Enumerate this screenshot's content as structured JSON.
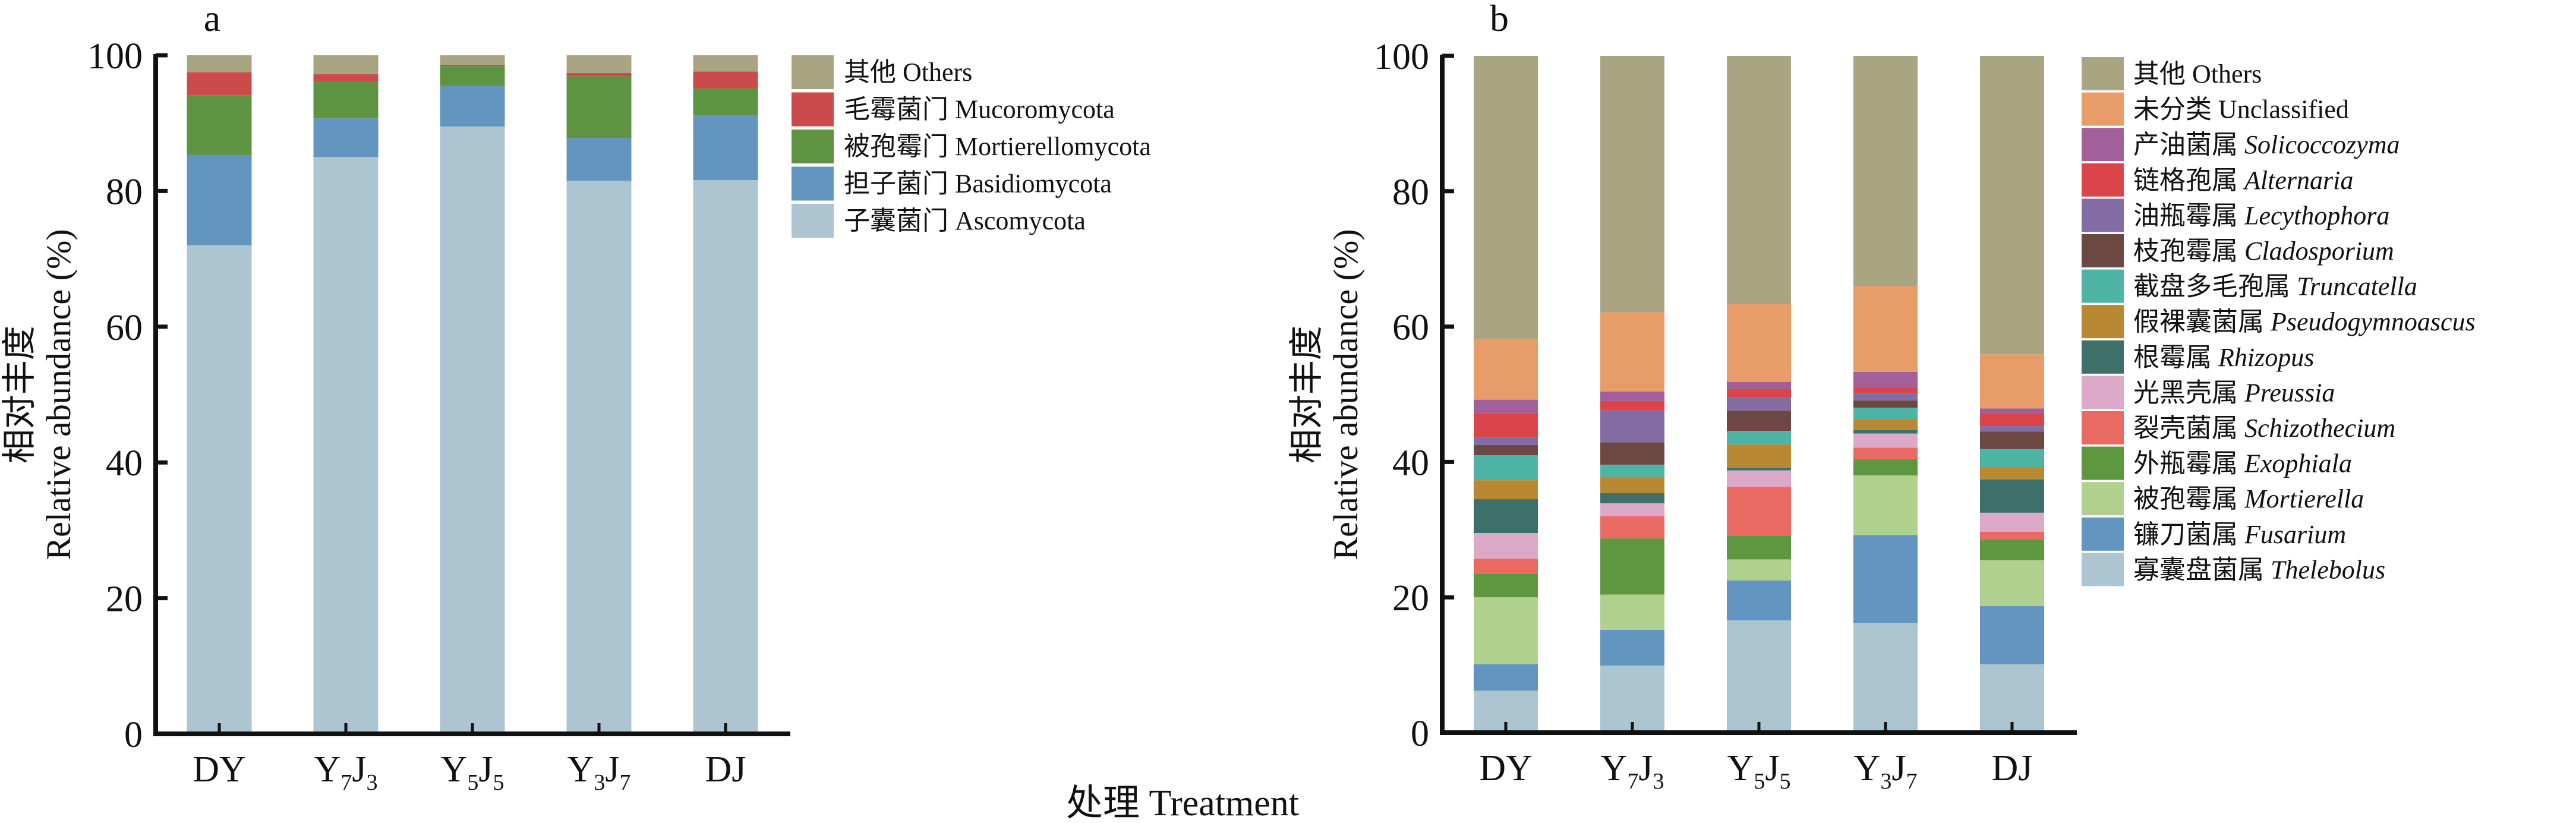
{
  "figure": {
    "x_title": "处理 Treatment"
  },
  "chart_data": [
    {
      "type": "bar",
      "stacked": true,
      "panel_label": "a",
      "title": "",
      "xlabel": "处理 Treatment",
      "ylabel_cn": "相对丰度",
      "ylabel_en": "Relative abundance (%)",
      "ylim": [
        0,
        100
      ],
      "yticks": [
        0,
        20,
        40,
        60,
        80,
        100
      ],
      "grid": false,
      "legend_position": "right",
      "categories": [
        {
          "main": "DY",
          "parts": [
            {
              "t": "DY",
              "sub": false
            }
          ]
        },
        {
          "main": "Y7J3",
          "parts": [
            {
              "t": "Y",
              "sub": false
            },
            {
              "t": "7",
              "sub": true
            },
            {
              "t": "J",
              "sub": false
            },
            {
              "t": "3",
              "sub": true
            }
          ]
        },
        {
          "main": "Y5J5",
          "parts": [
            {
              "t": "Y",
              "sub": false
            },
            {
              "t": "5",
              "sub": true
            },
            {
              "t": "J",
              "sub": false
            },
            {
              "t": "5",
              "sub": true
            }
          ]
        },
        {
          "main": "Y3J7",
          "parts": [
            {
              "t": "Y",
              "sub": false
            },
            {
              "t": "3",
              "sub": true
            },
            {
              "t": "J",
              "sub": false
            },
            {
              "t": "7",
              "sub": true
            }
          ]
        },
        {
          "main": "DJ",
          "parts": [
            {
              "t": "DJ",
              "sub": false
            }
          ]
        }
      ],
      "series": [
        {
          "name_cn": "子囊菌门",
          "name": "Ascomycota",
          "italic": false,
          "color": "#adc5d1",
          "values": [
            72.0,
            85.0,
            89.5,
            81.5,
            81.6
          ]
        },
        {
          "name_cn": "担子菌门",
          "name": "Basidiomycota",
          "italic": false,
          "color": "#6296c0",
          "values": [
            13.3,
            5.7,
            6.0,
            6.3,
            9.5
          ]
        },
        {
          "name_cn": "被孢霉门",
          "name": "Mortierellomycota",
          "italic": false,
          "color": "#5e9341",
          "values": [
            8.8,
            5.4,
            2.9,
            9.1,
            4.0
          ]
        },
        {
          "name_cn": "毛霉菌门",
          "name": "Mucoromycota",
          "italic": false,
          "color": "#cb4a4c",
          "values": [
            3.4,
            1.1,
            0.2,
            0.5,
            2.5
          ]
        },
        {
          "name_cn": "其他",
          "name": "Others",
          "italic": false,
          "color": "#a9a583",
          "values": [
            2.5,
            2.8,
            1.4,
            2.6,
            2.4
          ]
        }
      ]
    },
    {
      "type": "bar",
      "stacked": true,
      "panel_label": "b",
      "title": "",
      "xlabel": "处理 Treatment",
      "ylabel_cn": "相对丰度",
      "ylabel_en": "Relative abundance (%)",
      "ylim": [
        0,
        100
      ],
      "yticks": [
        0,
        20,
        40,
        60,
        80,
        100
      ],
      "grid": false,
      "legend_position": "right",
      "categories": [
        {
          "main": "DY",
          "parts": [
            {
              "t": "DY",
              "sub": false
            }
          ]
        },
        {
          "main": "Y7J3",
          "parts": [
            {
              "t": "Y",
              "sub": false
            },
            {
              "t": "7",
              "sub": true
            },
            {
              "t": "J",
              "sub": false
            },
            {
              "t": "3",
              "sub": true
            }
          ]
        },
        {
          "main": "Y5J5",
          "parts": [
            {
              "t": "Y",
              "sub": false
            },
            {
              "t": "5",
              "sub": true
            },
            {
              "t": "J",
              "sub": false
            },
            {
              "t": "5",
              "sub": true
            }
          ]
        },
        {
          "main": "Y3J7",
          "parts": [
            {
              "t": "Y",
              "sub": false
            },
            {
              "t": "3",
              "sub": true
            },
            {
              "t": "J",
              "sub": false
            },
            {
              "t": "7",
              "sub": true
            }
          ]
        },
        {
          "main": "DJ",
          "parts": [
            {
              "t": "DJ",
              "sub": false
            }
          ]
        }
      ],
      "series": [
        {
          "name_cn": "寡囊盘菌属",
          "name": "Thelebolus",
          "italic": true,
          "color": "#adc5d1",
          "values": [
            6.2,
            9.9,
            16.6,
            16.2,
            10.1
          ]
        },
        {
          "name_cn": "镰刀菌属",
          "name": "Fusarium",
          "italic": true,
          "color": "#6296c0",
          "values": [
            3.9,
            5.3,
            5.9,
            13.0,
            8.6
          ]
        },
        {
          "name_cn": "被孢霉属",
          "name": "Mortierella",
          "italic": true,
          "color": "#b0d18d",
          "values": [
            9.9,
            5.2,
            3.1,
            8.8,
            6.8
          ]
        },
        {
          "name_cn": "外瓶霉属",
          "name": "Exophiala",
          "italic": true,
          "color": "#5f9640",
          "values": [
            3.5,
            8.3,
            3.5,
            2.4,
            3.1
          ]
        },
        {
          "name_cn": "裂壳菌属",
          "name": "Schizothecium",
          "italic": true,
          "color": "#e96a63",
          "values": [
            2.2,
            3.3,
            7.2,
            1.7,
            1.1
          ]
        },
        {
          "name_cn": "光黑壳属",
          "name": "Preussia",
          "italic": true,
          "color": "#dca9c9",
          "values": [
            3.8,
            1.9,
            2.45,
            2.1,
            2.8
          ]
        },
        {
          "name_cn": "根霉属",
          "name": "Rhizopus",
          "italic": true,
          "color": "#3d7069",
          "values": [
            5.0,
            1.5,
            0.35,
            0.5,
            4.9
          ]
        },
        {
          "name_cn": "假裸囊菌属",
          "name": "Pseudogymnoascus",
          "italic": true,
          "color": "#b98832",
          "values": [
            2.8,
            2.4,
            3.5,
            1.6,
            1.8
          ]
        },
        {
          "name_cn": "截盘多毛孢属",
          "name": "Truncatella",
          "italic": true,
          "color": "#4db4a6",
          "values": [
            3.7,
            1.8,
            2.0,
            1.7,
            2.7
          ]
        },
        {
          "name_cn": "枝孢霉属",
          "name": "Cladosporium",
          "italic": true,
          "color": "#6d4742",
          "values": [
            1.5,
            3.3,
            3.0,
            1.1,
            2.6
          ]
        },
        {
          "name_cn": "油瓶霉属",
          "name": "Lecythophora",
          "italic": true,
          "color": "#836ca3",
          "values": [
            1.2,
            4.7,
            2.0,
            1.1,
            0.8
          ]
        },
        {
          "name_cn": "链格孢属",
          "name": "Alternaria",
          "italic": true,
          "color": "#db4549",
          "values": [
            3.5,
            1.4,
            1.2,
            0.8,
            1.8
          ]
        },
        {
          "name_cn": "产油菌属",
          "name": "Solicoccozyma",
          "italic": true,
          "color": "#a2609a",
          "values": [
            2.0,
            1.4,
            1.0,
            2.3,
            0.8
          ]
        },
        {
          "name_cn": "未分类",
          "name": "Unclassified",
          "italic": false,
          "color": "#e89c67",
          "values": [
            9.0,
            11.7,
            11.5,
            12.7,
            8.0
          ]
        },
        {
          "name_cn": "其他",
          "name": "Others",
          "italic": false,
          "color": "#a9a583",
          "values": [
            41.8,
            37.9,
            36.7,
            34.0,
            44.1
          ]
        }
      ]
    }
  ]
}
